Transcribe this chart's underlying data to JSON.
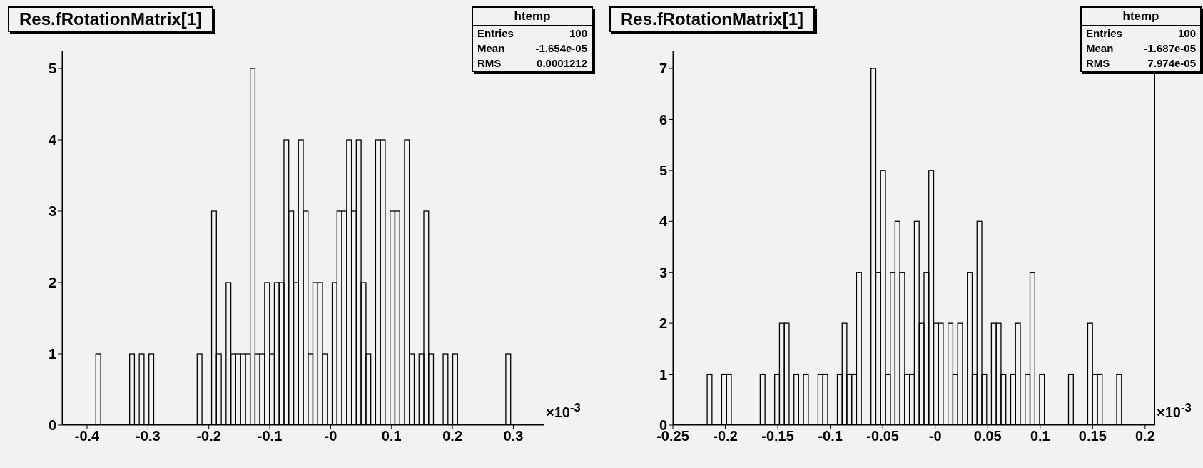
{
  "chart_data": [
    {
      "type": "histogram",
      "title": "Res.fRotationMatrix[1]",
      "color": "#000000",
      "annotations": [
        "×10$^{-3}$",
        "htemp",
        "Entries",
        "100",
        "Mean",
        "-1.654e-05",
        "RMS",
        "0.0001212"
      ],
      "bins": [
        -0.441,
        -0.4331,
        -0.4252,
        -0.4172,
        -0.4093,
        -0.4014,
        -0.3935,
        -0.3856,
        -0.3776,
        -0.3697,
        -0.3618,
        -0.3539,
        -0.346,
        -0.338,
        -0.3301,
        -0.3222,
        -0.3143,
        -0.3064,
        -0.2984,
        -0.2905,
        -0.2826,
        -0.2747,
        -0.2668,
        -0.2588,
        -0.2509,
        -0.243,
        -0.2351,
        -0.2272,
        -0.2192,
        -0.2113,
        -0.2034,
        -0.1955,
        -0.1876,
        -0.1796,
        -0.1717,
        -0.1638,
        -0.1559,
        -0.148,
        -0.14,
        -0.1321,
        -0.1242,
        -0.1163,
        -0.1084,
        -0.1004,
        -0.0925,
        -0.0846,
        -0.0767,
        -0.0688,
        -0.0608,
        -0.0529,
        -0.045,
        -0.0371,
        -0.0292,
        -0.0212,
        -0.0133,
        -0.0054,
        0.0025,
        0.0104,
        0.0184,
        0.0263,
        0.0342,
        0.0421,
        0.05,
        0.058,
        0.0659,
        0.0738,
        0.0817,
        0.0896,
        0.0976,
        0.1055,
        0.1134,
        0.1213,
        0.1292,
        0.1372,
        0.1451,
        0.153,
        0.1609,
        0.1688,
        0.1768,
        0.1847,
        0.1926,
        0.2005,
        0.2084,
        0.2164,
        0.2243,
        0.2322,
        0.2401,
        0.248,
        0.256,
        0.2639,
        0.2718,
        0.2797,
        0.2876,
        0.2956,
        0.3035,
        0.3114,
        0.3193,
        0.3272,
        0.3352,
        0.3431,
        0.351
      ],
      "values": [
        0,
        0,
        0,
        0,
        0,
        0,
        0,
        1,
        0,
        0,
        0,
        0,
        0,
        0,
        1,
        0,
        1,
        0,
        1,
        0,
        0,
        0,
        0,
        0,
        0,
        0,
        0,
        0,
        1,
        0,
        0,
        3,
        1,
        0,
        2,
        1,
        1,
        1,
        1,
        5,
        1,
        1,
        2,
        1,
        2,
        2,
        4,
        3,
        2,
        4,
        3,
        1,
        2,
        2,
        1,
        0,
        2,
        3,
        3,
        4,
        3,
        4,
        2,
        1,
        0,
        4,
        4,
        0,
        3,
        3,
        0,
        4,
        1,
        0,
        1,
        3,
        1,
        0,
        0,
        1,
        0,
        1,
        0,
        0,
        0,
        0,
        0,
        0,
        0,
        0,
        0,
        0,
        1,
        0,
        0,
        0,
        0,
        0,
        0,
        0
      ],
      "xlim": [
        -0.441,
        0.351
      ],
      "xticks": [
        -0.4,
        -0.3,
        -0.2,
        -0.1,
        {
          "value": 0,
          "label": "-0"
        },
        0.1,
        0.2,
        0.3
      ],
      "ylim": [
        0,
        5.25
      ],
      "yticks": [
        0,
        1,
        2,
        3,
        4,
        5
      ]
    },
    {
      "type": "histogram",
      "title": "Res.fRotationMatrix[1]",
      "color": "#000000",
      "annotations": [
        "×10$^{-3}$",
        "htemp",
        "Entries",
        "100",
        "Mean",
        "-1.687e-05",
        "RMS",
        "7.974e-05"
      ],
      "bins": [
        -0.2494,
        -0.2448,
        -0.2402,
        -0.2356,
        -0.231,
        -0.2264,
        -0.2219,
        -0.2173,
        -0.2127,
        -0.2081,
        -0.2035,
        -0.1989,
        -0.1943,
        -0.1897,
        -0.1851,
        -0.1805,
        -0.176,
        -0.1714,
        -0.1668,
        -0.1622,
        -0.1576,
        -0.153,
        -0.1484,
        -0.1438,
        -0.1392,
        -0.1346,
        -0.1301,
        -0.1255,
        -0.1209,
        -0.1163,
        -0.1117,
        -0.1071,
        -0.1025,
        -0.0979,
        -0.0933,
        -0.0887,
        -0.0842,
        -0.0796,
        -0.075,
        -0.0704,
        -0.0658,
        -0.0612,
        -0.0566,
        -0.052,
        -0.0474,
        -0.0428,
        -0.0383,
        -0.0337,
        -0.0291,
        -0.0245,
        -0.0199,
        -0.0153,
        -0.0107,
        -0.0061,
        -0.0015,
        0.0031,
        0.0076,
        0.0122,
        0.0168,
        0.0214,
        0.026,
        0.0306,
        0.0352,
        0.0398,
        0.0444,
        0.049,
        0.0535,
        0.0581,
        0.0627,
        0.0673,
        0.0719,
        0.0765,
        0.0811,
        0.0857,
        0.0903,
        0.0949,
        0.0994,
        0.104,
        0.1086,
        0.1132,
        0.1178,
        0.1224,
        0.127,
        0.1316,
        0.1362,
        0.1408,
        0.1453,
        0.1499,
        0.1545,
        0.1591,
        0.1637,
        0.1683,
        0.1729,
        0.1775,
        0.1821,
        0.1867,
        0.1912,
        0.1958,
        0.2004,
        0.205,
        0.2096
      ],
      "values": [
        0,
        0,
        0,
        0,
        0,
        0,
        0,
        1,
        0,
        0,
        1,
        1,
        0,
        0,
        0,
        0,
        0,
        0,
        1,
        0,
        0,
        1,
        2,
        2,
        0,
        1,
        0,
        1,
        0,
        0,
        1,
        1,
        0,
        0,
        1,
        2,
        1,
        1,
        3,
        0,
        0,
        7,
        3,
        5,
        1,
        3,
        4,
        3,
        1,
        1,
        4,
        2,
        3,
        5,
        2,
        2,
        0,
        2,
        1,
        2,
        0,
        3,
        1,
        4,
        1,
        0,
        2,
        2,
        1,
        0,
        1,
        2,
        0,
        1,
        3,
        0,
        1,
        0,
        0,
        0,
        0,
        0,
        1,
        0,
        0,
        0,
        2,
        1,
        1,
        0,
        0,
        0,
        1,
        0,
        0,
        0,
        0,
        0,
        0,
        0
      ],
      "xlim": [
        -0.25,
        0.2096
      ],
      "xticks": [
        -0.25,
        -0.2,
        -0.15,
        -0.1,
        -0.05,
        {
          "value": 0,
          "label": "-0"
        },
        0.05,
        0.1,
        0.15,
        0.2
      ],
      "ylim": [
        0,
        7.35
      ],
      "yticks": [
        0,
        1,
        2,
        3,
        4,
        5,
        6,
        7
      ]
    }
  ]
}
